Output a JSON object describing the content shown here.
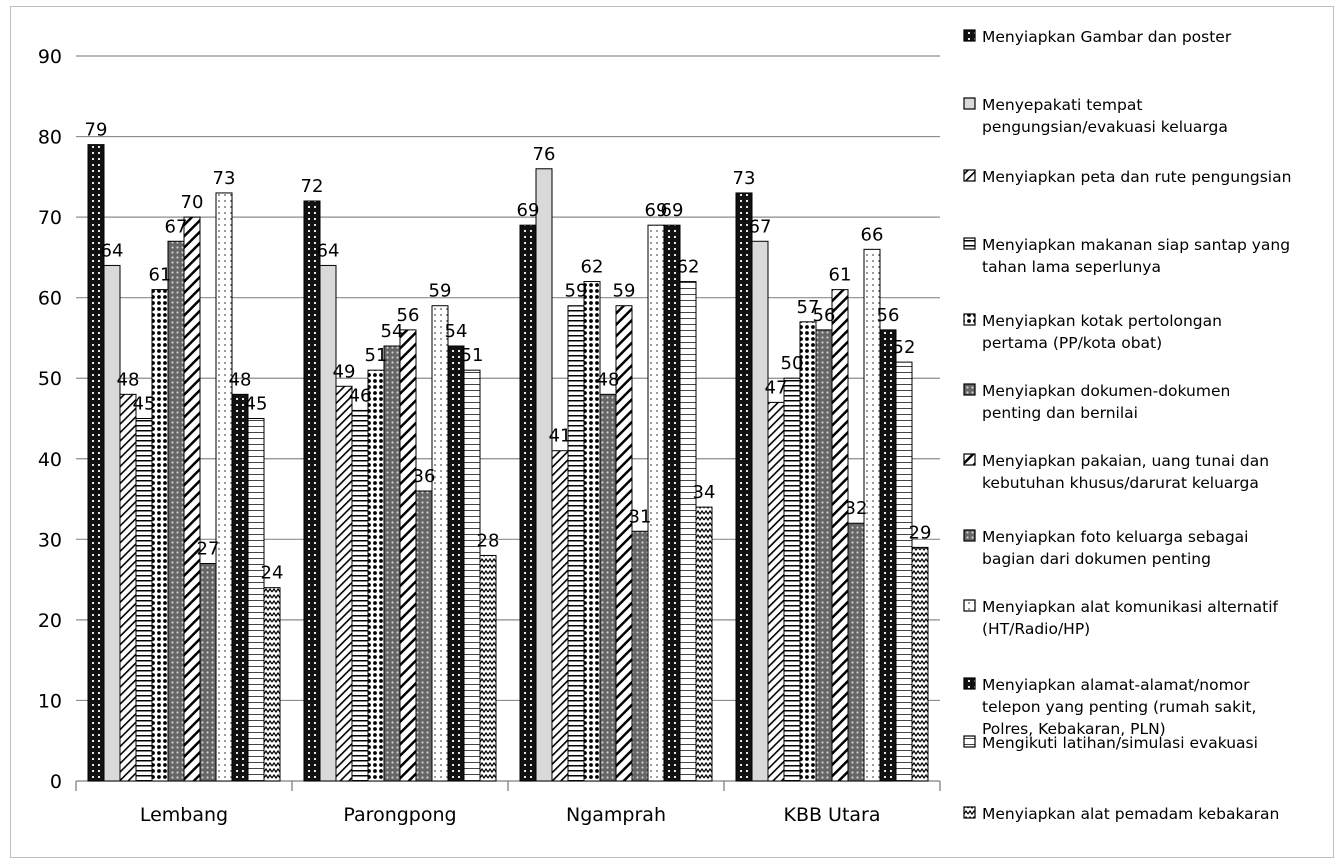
{
  "chart_data": {
    "type": "bar",
    "categories": [
      "Lembang",
      "Parongpong",
      "Ngamprah",
      "KBB Utara"
    ],
    "ylim": [
      0,
      90
    ],
    "yticks": [
      0,
      10,
      20,
      30,
      40,
      50,
      60,
      70,
      80,
      90
    ],
    "grid": true,
    "legend_position": "right",
    "series": [
      {
        "name": "Menyiapkan Gambar dan poster",
        "pattern": "dots-dark",
        "values": [
          79,
          72,
          69,
          73
        ]
      },
      {
        "name": "Menyepakati tempat pengungsian/evakuasi keluarga",
        "pattern": "light-gray",
        "values": [
          64,
          64,
          76,
          67
        ]
      },
      {
        "name": "Menyiapkan peta dan rute pengungsian",
        "pattern": "diagonal",
        "values": [
          48,
          49,
          41,
          47
        ]
      },
      {
        "name": "Menyiapkan makanan siap santap yang tahan lama seperlunya",
        "pattern": "horizontal",
        "values": [
          45,
          46,
          59,
          50
        ]
      },
      {
        "name": "Menyiapkan kotak pertolongan pertama (PP/kota obat)",
        "pattern": "dots-medium",
        "values": [
          61,
          51,
          62,
          57
        ]
      },
      {
        "name": "Menyiapkan dokumen-dokumen penting dan bernilai",
        "pattern": "crosshatch",
        "values": [
          67,
          54,
          48,
          56
        ]
      },
      {
        "name": "Menyiapkan pakaian, uang tunai dan kebutuhan khusus/darurat keluarga",
        "pattern": "diagonal-wide",
        "values": [
          70,
          56,
          59,
          61
        ]
      },
      {
        "name": "Menyiapkan foto keluarga sebagai bagian dari dokumen penting",
        "pattern": "crosshatch",
        "values": [
          27,
          36,
          31,
          32
        ]
      },
      {
        "name": "Menyiapkan alat komunikasi alternatif (HT/Radio/HP)",
        "pattern": "dots-light",
        "values": [
          73,
          59,
          69,
          66
        ]
      },
      {
        "name": "Menyiapkan alamat-alamat/nomor telepon yang penting (rumah sakit, Polres, Kebakaran, PLN)",
        "pattern": "dots-dark",
        "values": [
          48,
          54,
          69,
          56
        ]
      },
      {
        "name": "Mengikuti latihan/simulasi evakuasi",
        "pattern": "horizontal-light",
        "values": [
          45,
          51,
          62,
          52
        ]
      },
      {
        "name": "Menyiapkan alat pemadam kebakaran",
        "pattern": "zigzag",
        "values": [
          24,
          28,
          34,
          29
        ]
      }
    ],
    "legend_lines": [
      [
        "Menyiapkan Gambar dan poster"
      ],
      [
        "Menyepakati tempat",
        "pengungsian/evakuasi keluarga"
      ],
      [
        "Menyiapkan peta dan rute pengungsian"
      ],
      [
        "Menyiapkan makanan siap santap yang",
        "tahan lama seperlunya"
      ],
      [
        "Menyiapkan kotak pertolongan",
        "pertama (PP/kota obat)"
      ],
      [
        "Menyiapkan dokumen-dokumen",
        "penting dan bernilai"
      ],
      [
        "Menyiapkan pakaian, uang tunai dan",
        "kebutuhan khusus/darurat keluarga"
      ],
      [
        "Menyiapkan foto keluarga sebagai",
        "bagian dari dokumen penting"
      ],
      [
        "Menyiapkan alat komunikasi alternatif",
        "(HT/Radio/HP)"
      ],
      [
        "Menyiapkan alamat-alamat/nomor",
        "telepon yang penting (rumah sakit,",
        "Polres, Kebakaran, PLN)"
      ],
      [
        "Mengikuti latihan/simulasi evakuasi"
      ],
      [
        "Menyiapkan alat pemadam kebakaran"
      ]
    ]
  }
}
